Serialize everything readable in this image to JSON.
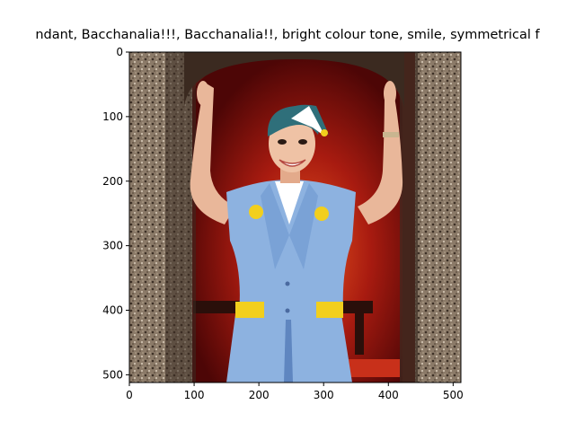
{
  "title": "ndant,  Bacchanalia!!!, Bacchanalia!!, bright colour tone, smile, symmetrical f",
  "axes": {
    "x_ticks": [
      "0",
      "100",
      "200",
      "300",
      "400",
      "500"
    ],
    "y_ticks": [
      "0",
      "100",
      "200",
      "300",
      "400",
      "500"
    ],
    "x_range": [
      0,
      512
    ],
    "y_range": [
      512,
      0
    ]
  },
  "image": {
    "subject": "smiling woman in blue flight attendant uniform with arms raised in a stone doorway",
    "colors": {
      "stone": "#8b7a68",
      "stone_dark": "#3d3026",
      "interior": "#7a0c0c",
      "interior_glow": "#d33a1a",
      "uniform": "#8db2e0",
      "uniform_dark": "#5f86c0",
      "skin": "#e9b79a",
      "hair": "#2f6f7a",
      "accent_yellow": "#f2cf1d"
    }
  }
}
